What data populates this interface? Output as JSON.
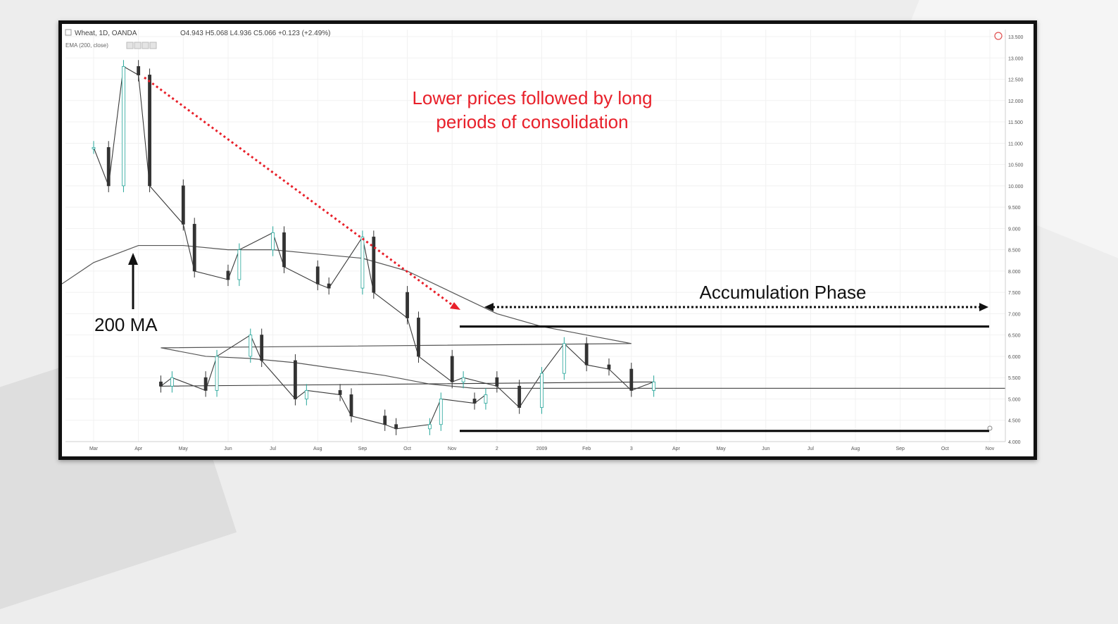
{
  "header": {
    "symbol": "Wheat, 1D, OANDA",
    "ohlc": "O4.943  H5.068  L4.936  C5.066  +0.123 (+2.49%)",
    "indicator": "EMA (200, close)"
  },
  "annotations": {
    "headline_line1": "Lower prices followed by long",
    "headline_line2": "periods of consolidation",
    "accumulation": "Accumulation Phase",
    "ma_label": "200 MA"
  },
  "colors": {
    "up": "#26a69a",
    "down": "#333333",
    "ema": "#555555",
    "arrow": "#e8202a",
    "headline": "#e8202a",
    "level": "#000000"
  },
  "chart_data": {
    "type": "line",
    "title": "Wheat, 1D, OANDA",
    "ylim": [
      4.0,
      13.5
    ],
    "y_ticks": [
      "13.500",
      "13.000",
      "12.500",
      "12.000",
      "11.500",
      "11.000",
      "10.500",
      "10.000",
      "9.500",
      "9.000",
      "8.500",
      "8.000",
      "7.500",
      "7.000",
      "6.500",
      "6.000",
      "5.500",
      "5.000",
      "4.500",
      "4.000"
    ],
    "x_ticks": [
      "Mar",
      "Apr",
      "May",
      "Jun",
      "Jul",
      "Aug",
      "Sep",
      "Oct",
      "Nov",
      "2",
      "2009",
      "Feb",
      "3",
      "Apr",
      "May",
      "Jun",
      "Jul",
      "Aug",
      "Sep",
      "Oct",
      "Nov"
    ],
    "grid": true,
    "series": [
      {
        "name": "Wheat",
        "style": "candles",
        "x": [
          "Mar",
          "Mar",
          "Mar",
          "Apr",
          "Apr",
          "May",
          "May",
          "Jun",
          "Jun",
          "Jul",
          "Jul",
          "Aug",
          "Aug",
          "Sep",
          "Sep",
          "Oct",
          "Oct",
          "Nov",
          "Nov",
          "2",
          "2",
          "2009",
          "2009",
          "Feb",
          "Feb",
          "3",
          "3",
          "Apr",
          "Apr",
          "May",
          "May",
          "Jun",
          "Jun",
          "Jul",
          "Jul",
          "Aug",
          "Aug",
          "Sep",
          "Sep",
          "Oct",
          "Oct",
          "Nov",
          "Nov"
        ],
        "y": [
          10.9,
          10.0,
          12.8,
          12.6,
          10.0,
          9.1,
          8.0,
          7.8,
          8.5,
          8.9,
          8.1,
          7.7,
          7.6,
          8.8,
          7.5,
          6.9,
          6.0,
          5.4,
          5.5,
          5.3,
          4.8,
          5.6,
          6.3,
          5.8,
          5.7,
          5.2,
          5.4,
          5.3,
          5.5,
          5.2,
          6.0,
          6.5,
          5.9,
          5.0,
          5.2,
          5.1,
          4.6,
          4.4,
          4.3,
          4.4,
          5.0,
          4.9,
          5.1
        ]
      },
      {
        "name": "EMA (200, close)",
        "style": "line",
        "x": [
          "Mar",
          "Apr",
          "May",
          "Jun",
          "Jul",
          "Aug",
          "Sep",
          "Oct",
          "Nov",
          "2",
          "2009",
          "Feb",
          "3",
          "Apr",
          "May",
          "Jun",
          "Jul",
          "Aug",
          "Sep",
          "Oct",
          "Nov"
        ],
        "y": [
          8.2,
          8.6,
          8.6,
          8.5,
          8.5,
          8.4,
          8.3,
          8.0,
          7.5,
          7.0,
          6.7,
          6.5,
          6.3,
          6.2,
          6.0,
          5.95,
          5.85,
          5.7,
          5.55,
          5.35,
          5.25
        ]
      }
    ],
    "levels": [
      6.7,
      4.25
    ]
  }
}
